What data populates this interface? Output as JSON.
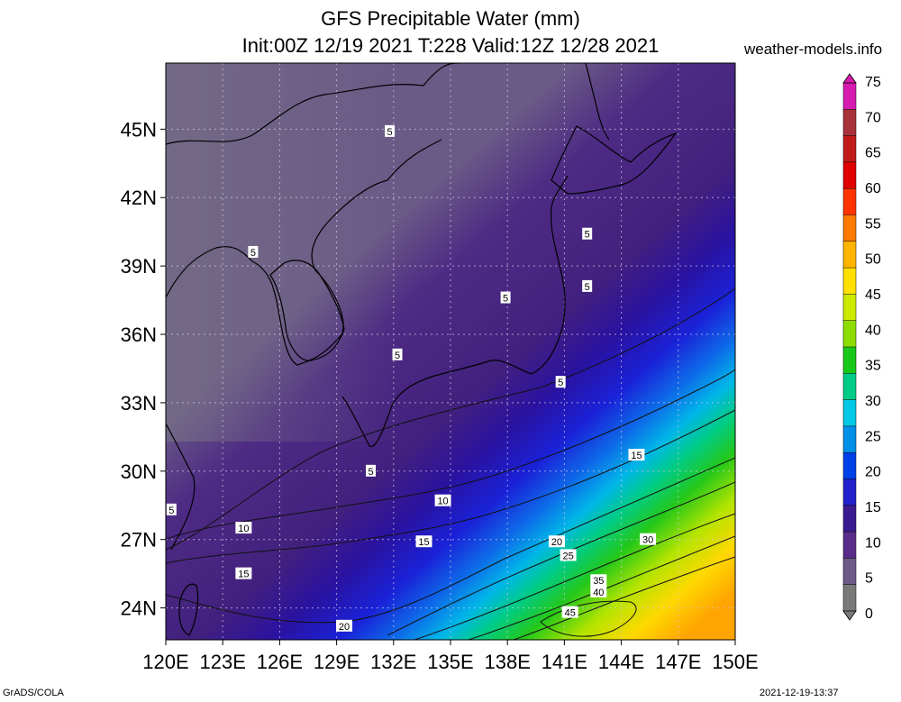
{
  "header": {
    "title_line1": "GFS Precipitable Water (mm)",
    "title_line2": "Init:00Z 12/19 2021 T:228 Valid:12Z 12/28 2021",
    "site": "weather-models.info"
  },
  "footer": {
    "left": "GrADS/COLA",
    "right": "2021-12-19-13:37"
  },
  "axes": {
    "lon_labels": [
      "120E",
      "123E",
      "126E",
      "129E",
      "132E",
      "135E",
      "138E",
      "141E",
      "144E",
      "147E",
      "150E"
    ],
    "lat_labels": [
      "45N",
      "42N",
      "39N",
      "36N",
      "33N",
      "30N",
      "27N",
      "24N"
    ]
  },
  "colorbar": {
    "labels": [
      "75",
      "70",
      "65",
      "60",
      "55",
      "50",
      "45",
      "40",
      "35",
      "30",
      "25",
      "20",
      "15",
      "10",
      "5",
      "0"
    ],
    "colors": [
      "#d61bb0",
      "#a8323a",
      "#c21a1a",
      "#e00000",
      "#ff3300",
      "#ff7a00",
      "#ffb400",
      "#ffe000",
      "#ccea00",
      "#8edd00",
      "#18c818",
      "#00cc88",
      "#00c8e6",
      "#0090e8",
      "#0040e8",
      "#2222cc",
      "#3a1a90",
      "#5a2c8a",
      "#6e5a86",
      "#7a7a7a"
    ]
  },
  "contour_labels": [
    {
      "text": "5",
      "lon": 131.8,
      "lat": 44.9
    },
    {
      "text": "5",
      "lon": 142.2,
      "lat": 40.4
    },
    {
      "text": "5",
      "lon": 142.2,
      "lat": 38.1
    },
    {
      "text": "5",
      "lon": 124.6,
      "lat": 39.6
    },
    {
      "text": "5",
      "lon": 137.9,
      "lat": 37.6
    },
    {
      "text": "5",
      "lon": 132.2,
      "lat": 35.1
    },
    {
      "text": "5",
      "lon": 140.8,
      "lat": 33.9
    },
    {
      "text": "5",
      "lon": 130.8,
      "lat": 30.0
    },
    {
      "text": "5",
      "lon": 120.3,
      "lat": 28.3
    },
    {
      "text": "10",
      "lon": 124.1,
      "lat": 27.5
    },
    {
      "text": "10",
      "lon": 134.6,
      "lat": 28.7
    },
    {
      "text": "15",
      "lon": 144.8,
      "lat": 30.7
    },
    {
      "text": "15",
      "lon": 133.6,
      "lat": 26.9
    },
    {
      "text": "15",
      "lon": 124.1,
      "lat": 25.5
    },
    {
      "text": "20",
      "lon": 140.6,
      "lat": 26.9
    },
    {
      "text": "20",
      "lon": 129.4,
      "lat": 23.2
    },
    {
      "text": "25",
      "lon": 141.2,
      "lat": 26.3
    },
    {
      "text": "30",
      "lon": 145.4,
      "lat": 27.0
    },
    {
      "text": "35",
      "lon": 142.8,
      "lat": 25.2
    },
    {
      "text": "40",
      "lon": 142.8,
      "lat": 24.7
    },
    {
      "text": "45",
      "lon": 141.3,
      "lat": 23.8
    }
  ]
}
